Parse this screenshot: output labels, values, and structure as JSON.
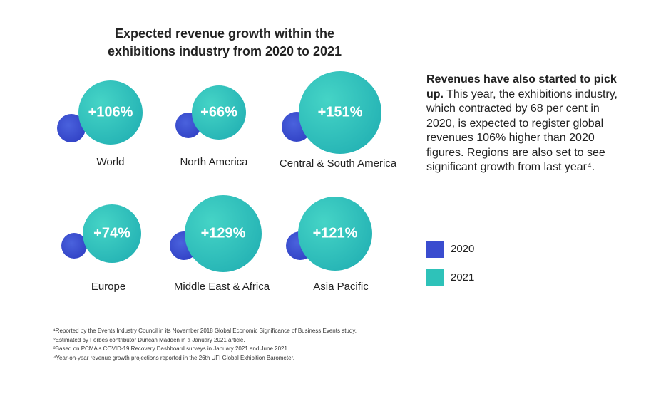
{
  "title": [
    "Expected revenue growth within the",
    "exhibitions industry from 2020 to 2021"
  ],
  "regions": [
    {
      "growth": "+106%",
      "name": "World"
    },
    {
      "growth": "+66%",
      "name": "North America"
    },
    {
      "growth": "+151%",
      "name": "Central & South America"
    },
    {
      "growth": "+74%",
      "name": "Europe"
    },
    {
      "growth": "+129%",
      "name": "Middle East & Africa"
    },
    {
      "growth": "+121%",
      "name": "Asia Pacific"
    }
  ],
  "text": {
    "lead": "Revenues have also started to pick up.",
    "body": "This year, the exhibitions industry, which contracted by 68 per cent in 2020, is expected to register global revenues 106% higher than 2020 figures. Regions are also set to see significant growth from last year⁴."
  },
  "legend": [
    {
      "label": "2020",
      "color": "#3a4ccf"
    },
    {
      "label": "2021",
      "color": "#2ec2b9"
    }
  ],
  "footnotes": [
    "¹Reported by the Events Industry Council in its November 2018 Global Economic Significance of Business Events study.",
    "²Estimated by Forbes contributor Duncan Madden in a January 2021 article.",
    "³Based on PCMA's COVID-19 Recovery Dashboard surveys in January 2021 and June 2021.",
    "⁴Year-on-year revenue growth projections reported in the 26th UFI Global Exhibition Barometer."
  ]
}
